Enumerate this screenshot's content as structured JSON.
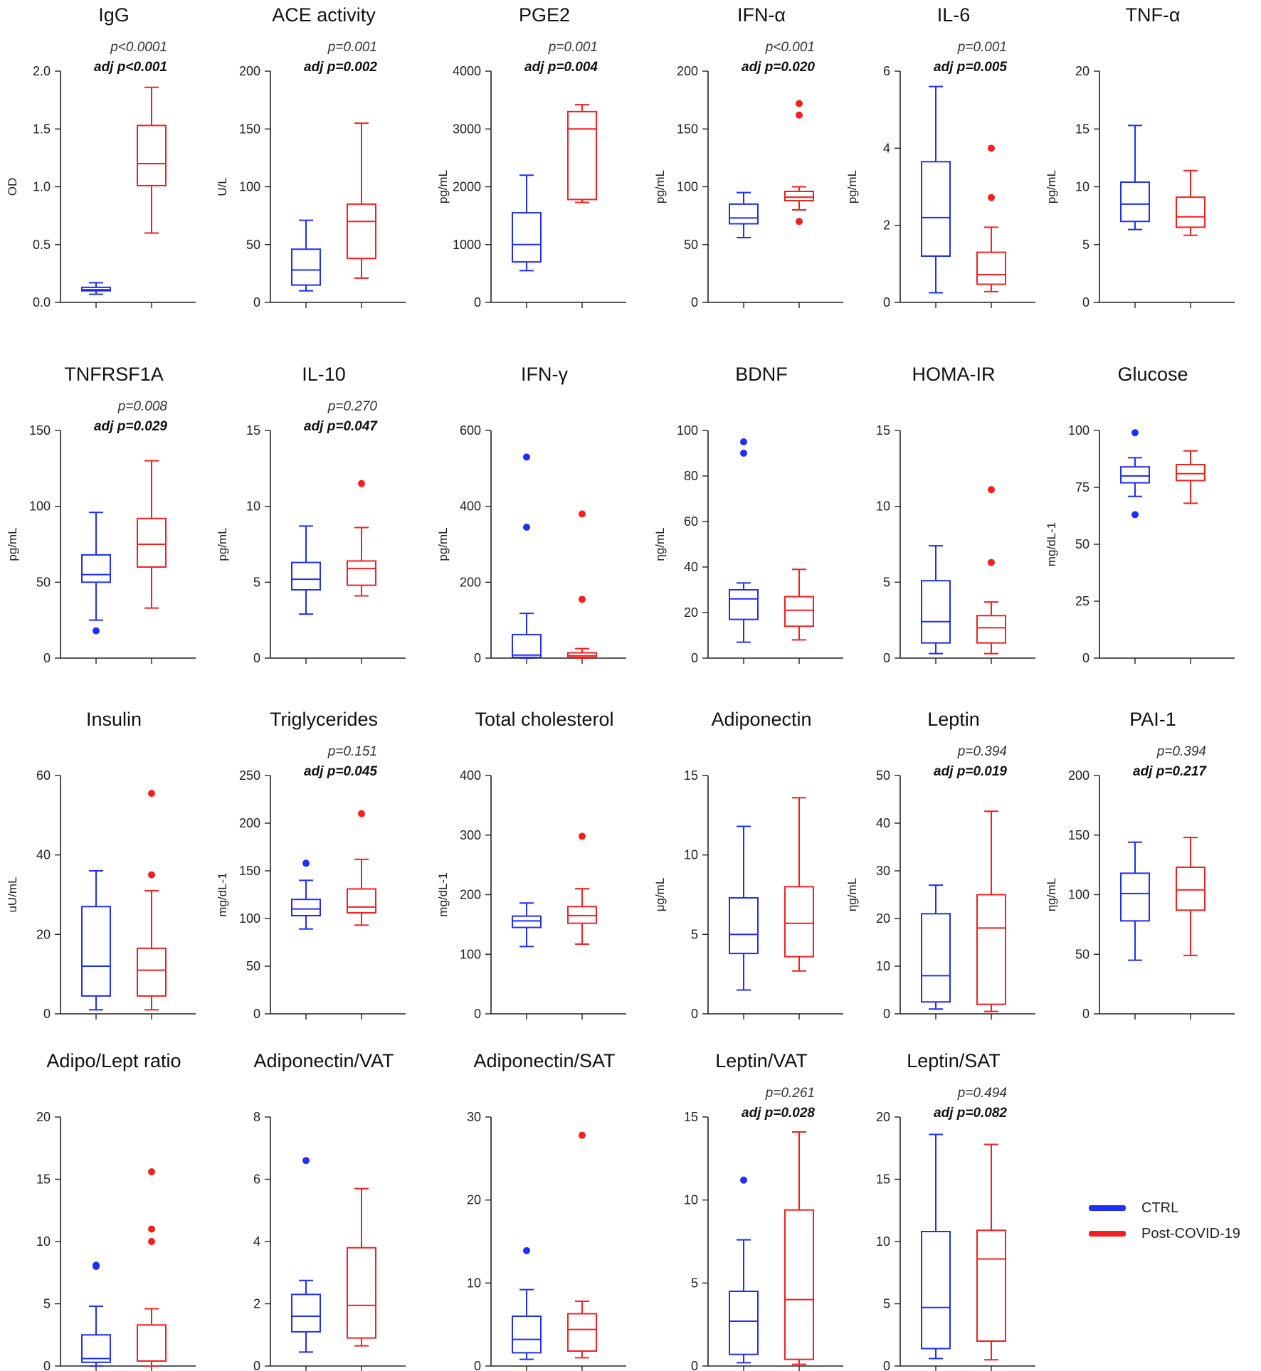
{
  "figure": {
    "legend": [
      {
        "label": "CTRL",
        "color": "#1f2ff5"
      },
      {
        "label": "Post-COVID-19",
        "color": "#f51f1f"
      }
    ]
  },
  "chart_data": [
    {
      "type": "box",
      "title": "IgG",
      "ylabel": "OD",
      "ylim": [
        0,
        2.0
      ],
      "ticks": [
        0.0,
        0.5,
        1.0,
        1.5,
        2.0
      ],
      "tick_labels": [
        "0.0",
        "0.5",
        "1.0",
        "1.5",
        "2.0"
      ],
      "p": "p<0.0001",
      "adj": "adj p<0.001",
      "groups": [
        {
          "name": "CTRL",
          "min": 0.07,
          "q1": 0.1,
          "median": 0.11,
          "q3": 0.13,
          "max": 0.17,
          "outliers": []
        },
        {
          "name": "Post-COVID-19",
          "min": 0.6,
          "q1": 1.01,
          "median": 1.2,
          "q3": 1.53,
          "max": 1.86,
          "outliers": []
        }
      ]
    },
    {
      "type": "box",
      "title": "ACE activity",
      "ylabel": "U/L",
      "ylim": [
        0,
        200
      ],
      "ticks": [
        0,
        50,
        100,
        150,
        200
      ],
      "tick_labels": [
        "0",
        "50",
        "100",
        "150",
        "200"
      ],
      "p": "p=0.001",
      "adj": "adj p=0.002",
      "groups": [
        {
          "name": "CTRL",
          "min": 10,
          "q1": 15,
          "median": 28,
          "q3": 46,
          "max": 71,
          "outliers": []
        },
        {
          "name": "Post-COVID-19",
          "min": 21,
          "q1": 38,
          "median": 70,
          "q3": 85,
          "max": 155,
          "outliers": []
        }
      ]
    },
    {
      "type": "box",
      "title": "PGE2",
      "ylabel": "pg/mL",
      "ylim": [
        0,
        4000
      ],
      "ticks": [
        0,
        1000,
        2000,
        3000,
        4000
      ],
      "tick_labels": [
        "0",
        "1000",
        "2000",
        "3000",
        "4000"
      ],
      "p": "p=0.001",
      "adj": "adj p=0.004",
      "groups": [
        {
          "name": "CTRL",
          "min": 550,
          "q1": 700,
          "median": 1000,
          "q3": 1550,
          "max": 2200,
          "outliers": []
        },
        {
          "name": "Post-COVID-19",
          "min": 1730,
          "q1": 1780,
          "median": 3000,
          "q3": 3300,
          "max": 3420,
          "outliers": []
        }
      ]
    },
    {
      "type": "box",
      "title": "IFN-α",
      "ylabel": "pg/mL",
      "ylim": [
        0,
        200
      ],
      "ticks": [
        0,
        50,
        100,
        150,
        200
      ],
      "tick_labels": [
        "0",
        "50",
        "100",
        "150",
        "200"
      ],
      "p": "p<0.001",
      "adj": "adj p=0.020",
      "groups": [
        {
          "name": "CTRL",
          "min": 56,
          "q1": 68,
          "median": 73,
          "q3": 85,
          "max": 95,
          "outliers": []
        },
        {
          "name": "Post-COVID-19",
          "min": 80,
          "q1": 88,
          "median": 91,
          "q3": 96,
          "max": 100,
          "outliers": [
            162,
            172,
            70
          ]
        }
      ]
    },
    {
      "type": "box",
      "title": "IL-6",
      "ylabel": "pg/mL",
      "ylim": [
        0,
        6
      ],
      "ticks": [
        0,
        2,
        4,
        6
      ],
      "tick_labels": [
        "0",
        "2",
        "4",
        "6"
      ],
      "p": "p=0.001",
      "adj": "adj p=0.005",
      "groups": [
        {
          "name": "CTRL",
          "min": 0.25,
          "q1": 1.2,
          "median": 2.2,
          "q3": 3.65,
          "max": 5.6,
          "outliers": []
        },
        {
          "name": "Post-COVID-19",
          "min": 0.28,
          "q1": 0.47,
          "median": 0.72,
          "q3": 1.3,
          "max": 1.95,
          "outliers": [
            2.72,
            4.0
          ]
        }
      ]
    },
    {
      "type": "box",
      "title": "TNF-α",
      "ylabel": "pg/mL",
      "ylim": [
        0,
        20
      ],
      "ticks": [
        0,
        5,
        10,
        15,
        20
      ],
      "tick_labels": [
        "0",
        "5",
        "10",
        "15",
        "20"
      ],
      "p": "",
      "adj": "",
      "groups": [
        {
          "name": "CTRL",
          "min": 6.3,
          "q1": 7.0,
          "median": 8.5,
          "q3": 10.4,
          "max": 15.3,
          "outliers": []
        },
        {
          "name": "Post-COVID-19",
          "min": 5.8,
          "q1": 6.5,
          "median": 7.4,
          "q3": 9.1,
          "max": 11.4,
          "outliers": []
        }
      ]
    },
    {
      "type": "box",
      "title": "TNFRSF1A",
      "ylabel": "pg/mL",
      "ylim": [
        0,
        150
      ],
      "ticks": [
        0,
        50,
        100,
        150
      ],
      "tick_labels": [
        "0",
        "50",
        "100",
        "150"
      ],
      "p": "p=0.008",
      "adj": "adj p=0.029",
      "groups": [
        {
          "name": "CTRL",
          "min": 25,
          "q1": 50,
          "median": 55,
          "q3": 68,
          "max": 96,
          "outliers": [
            18
          ]
        },
        {
          "name": "Post-COVID-19",
          "min": 33,
          "q1": 60,
          "median": 75,
          "q3": 92,
          "max": 130,
          "outliers": []
        }
      ]
    },
    {
      "type": "box",
      "title": "IL-10",
      "ylabel": "pg/mL",
      "ylim": [
        0,
        15
      ],
      "ticks": [
        0,
        5,
        10,
        15
      ],
      "tick_labels": [
        "0",
        "5",
        "10",
        "15"
      ],
      "p": "p=0.270",
      "adj": "adj p=0.047",
      "groups": [
        {
          "name": "CTRL",
          "min": 2.9,
          "q1": 4.5,
          "median": 5.2,
          "q3": 6.3,
          "max": 8.7,
          "outliers": []
        },
        {
          "name": "Post-COVID-19",
          "min": 4.1,
          "q1": 4.8,
          "median": 5.9,
          "q3": 6.4,
          "max": 8.6,
          "outliers": [
            11.5
          ]
        }
      ]
    },
    {
      "type": "box",
      "title": "IFN-γ",
      "ylabel": "pg/mL",
      "ylim": [
        0,
        600
      ],
      "ticks": [
        0,
        200,
        400,
        600
      ],
      "tick_labels": [
        "0",
        "200",
        "400",
        "600"
      ],
      "p": "",
      "adj": "",
      "groups": [
        {
          "name": "CTRL",
          "min": 0,
          "q1": 2,
          "median": 8,
          "q3": 62,
          "max": 118,
          "outliers": [
            345,
            530
          ]
        },
        {
          "name": "Post-COVID-19",
          "min": 0,
          "q1": 2,
          "median": 6,
          "q3": 14,
          "max": 25,
          "outliers": [
            155,
            380
          ]
        }
      ]
    },
    {
      "type": "box",
      "title": "BDNF",
      "ylabel": "ηg/mL",
      "ylim": [
        0,
        100
      ],
      "ticks": [
        0,
        20,
        40,
        60,
        80,
        100
      ],
      "tick_labels": [
        "0",
        "20",
        "40",
        "60",
        "80",
        "100"
      ],
      "p": "",
      "adj": "",
      "groups": [
        {
          "name": "CTRL",
          "min": 7,
          "q1": 17,
          "median": 26,
          "q3": 30,
          "max": 33,
          "outliers": [
            90,
            95
          ]
        },
        {
          "name": "Post-COVID-19",
          "min": 8,
          "q1": 14,
          "median": 21,
          "q3": 27,
          "max": 39,
          "outliers": []
        }
      ]
    },
    {
      "type": "box",
      "title": "HOMA-IR",
      "ylabel": "",
      "ylim": [
        0,
        15
      ],
      "ticks": [
        0,
        5,
        10,
        15
      ],
      "tick_labels": [
        "0",
        "5",
        "10",
        "15"
      ],
      "p": "",
      "adj": "",
      "groups": [
        {
          "name": "CTRL",
          "min": 0.3,
          "q1": 1.0,
          "median": 2.4,
          "q3": 5.1,
          "max": 7.4,
          "outliers": []
        },
        {
          "name": "Post-COVID-19",
          "min": 0.3,
          "q1": 1.0,
          "median": 2.0,
          "q3": 2.8,
          "max": 3.7,
          "outliers": [
            6.3,
            11.1
          ]
        }
      ]
    },
    {
      "type": "box",
      "title": "Glucose",
      "ylabel": "mg/dL-1",
      "ylim": [
        0,
        100
      ],
      "ticks": [
        0,
        25,
        50,
        75,
        100
      ],
      "tick_labels": [
        "0",
        "25",
        "50",
        "75",
        "100"
      ],
      "p": "",
      "adj": "",
      "groups": [
        {
          "name": "CTRL",
          "min": 71,
          "q1": 77,
          "median": 80,
          "q3": 84,
          "max": 88,
          "outliers": [
            63,
            99
          ]
        },
        {
          "name": "Post-COVID-19",
          "min": 68,
          "q1": 78,
          "median": 81,
          "q3": 85,
          "max": 91,
          "outliers": []
        }
      ]
    },
    {
      "type": "box",
      "title": "Insulin",
      "ylabel": "uU/mL",
      "ylim": [
        0,
        60
      ],
      "ticks": [
        0,
        20,
        40,
        60
      ],
      "tick_labels": [
        "0",
        "20",
        "40",
        "60"
      ],
      "p": "",
      "adj": "",
      "groups": [
        {
          "name": "CTRL",
          "min": 1,
          "q1": 4.5,
          "median": 12,
          "q3": 27,
          "max": 36,
          "outliers": []
        },
        {
          "name": "Post-COVID-19",
          "min": 1,
          "q1": 4.5,
          "median": 11,
          "q3": 16.5,
          "max": 31,
          "outliers": [
            35,
            55.5
          ]
        }
      ]
    },
    {
      "type": "box",
      "title": "Triglycerides",
      "ylabel": "mg/dL-1",
      "ylim": [
        0,
        250
      ],
      "ticks": [
        0,
        50,
        100,
        150,
        200,
        250
      ],
      "tick_labels": [
        "0",
        "50",
        "100",
        "150",
        "200",
        "250"
      ],
      "p": "p=0.151",
      "adj": "adj p=0.045",
      "groups": [
        {
          "name": "CTRL",
          "min": 89,
          "q1": 103,
          "median": 110,
          "q3": 120,
          "max": 140,
          "outliers": [
            158
          ]
        },
        {
          "name": "Post-COVID-19",
          "min": 93,
          "q1": 106,
          "median": 112,
          "q3": 131,
          "max": 162,
          "outliers": [
            210
          ]
        }
      ]
    },
    {
      "type": "box",
      "title": "Total cholesterol",
      "ylabel": "mg/dL-1",
      "ylim": [
        0,
        400
      ],
      "ticks": [
        0,
        100,
        200,
        300,
        400
      ],
      "tick_labels": [
        "0",
        "100",
        "200",
        "300",
        "400"
      ],
      "p": "",
      "adj": "",
      "groups": [
        {
          "name": "CTRL",
          "min": 113,
          "q1": 145,
          "median": 156,
          "q3": 164,
          "max": 186,
          "outliers": []
        },
        {
          "name": "Post-COVID-19",
          "min": 117,
          "q1": 152,
          "median": 165,
          "q3": 180,
          "max": 210,
          "outliers": [
            298
          ]
        }
      ]
    },
    {
      "type": "box",
      "title": "Adiponectin",
      "ylabel": "μg/mL",
      "ylim": [
        0,
        15
      ],
      "ticks": [
        0,
        5,
        10,
        15
      ],
      "tick_labels": [
        "0",
        "5",
        "10",
        "15"
      ],
      "p": "",
      "adj": "",
      "groups": [
        {
          "name": "CTRL",
          "min": 1.5,
          "q1": 3.8,
          "median": 5.0,
          "q3": 7.3,
          "max": 11.8,
          "outliers": []
        },
        {
          "name": "Post-COVID-19",
          "min": 2.7,
          "q1": 3.6,
          "median": 5.7,
          "q3": 8.0,
          "max": 13.6,
          "outliers": []
        }
      ]
    },
    {
      "type": "box",
      "title": "Leptin",
      "ylabel": "ηg/mL",
      "ylim": [
        0,
        50
      ],
      "ticks": [
        0,
        10,
        20,
        30,
        40,
        50
      ],
      "tick_labels": [
        "0",
        "10",
        "20",
        "30",
        "40",
        "50"
      ],
      "p": "p=0.394",
      "adj": "adj p=0.019",
      "groups": [
        {
          "name": "CTRL",
          "min": 1,
          "q1": 2.5,
          "median": 8,
          "q3": 21,
          "max": 27,
          "outliers": []
        },
        {
          "name": "Post-COVID-19",
          "min": 0.5,
          "q1": 2,
          "median": 18,
          "q3": 25,
          "max": 42.5,
          "outliers": []
        }
      ]
    },
    {
      "type": "box",
      "title": "PAI-1",
      "ylabel": "ηg/mL",
      "ylim": [
        0,
        200
      ],
      "ticks": [
        0,
        50,
        100,
        150,
        200
      ],
      "tick_labels": [
        "0",
        "50",
        "100",
        "150",
        "200"
      ],
      "p": "p=0.394",
      "adj": "adj p=0.217",
      "groups": [
        {
          "name": "CTRL",
          "min": 45,
          "q1": 78,
          "median": 101,
          "q3": 118,
          "max": 144,
          "outliers": []
        },
        {
          "name": "Post-COVID-19",
          "min": 49,
          "q1": 87,
          "median": 104,
          "q3": 123,
          "max": 148,
          "outliers": []
        }
      ]
    },
    {
      "type": "box",
      "title": "Adipo/Lept ratio",
      "ylabel": "",
      "ylim": [
        0,
        20
      ],
      "ticks": [
        0,
        5,
        10,
        15,
        20
      ],
      "tick_labels": [
        "0",
        "5",
        "10",
        "15",
        "20"
      ],
      "p": "",
      "adj": "",
      "groups": [
        {
          "name": "CTRL",
          "min": 0,
          "q1": 0.3,
          "median": 0.6,
          "q3": 2.5,
          "max": 4.8,
          "outliers": [
            8,
            8.1
          ]
        },
        {
          "name": "Post-COVID-19",
          "min": 0,
          "q1": 0.4,
          "median": 0.4,
          "q3": 3.3,
          "max": 4.6,
          "outliers": [
            10,
            11,
            15.6
          ]
        }
      ]
    },
    {
      "type": "box",
      "title": "Adiponectin/VAT",
      "ylabel": "",
      "ylim": [
        0,
        8
      ],
      "ticks": [
        0,
        2,
        4,
        6,
        8
      ],
      "tick_labels": [
        "0",
        "2",
        "4",
        "6",
        "8"
      ],
      "p": "",
      "adj": "",
      "groups": [
        {
          "name": "CTRL",
          "min": 0.45,
          "q1": 1.1,
          "median": 1.6,
          "q3": 2.3,
          "max": 2.75,
          "outliers": [
            6.6
          ]
        },
        {
          "name": "Post-COVID-19",
          "min": 0.65,
          "q1": 0.9,
          "median": 1.95,
          "q3": 3.8,
          "max": 5.7,
          "outliers": []
        }
      ]
    },
    {
      "type": "box",
      "title": "Adiponectin/SAT",
      "ylabel": "",
      "ylim": [
        0,
        30
      ],
      "ticks": [
        0,
        10,
        20,
        30
      ],
      "tick_labels": [
        "0",
        "10",
        "20",
        "30"
      ],
      "p": "",
      "adj": "",
      "groups": [
        {
          "name": "CTRL",
          "min": 0.8,
          "q1": 1.6,
          "median": 3.2,
          "q3": 6.0,
          "max": 9.2,
          "outliers": [
            13.9
          ]
        },
        {
          "name": "Post-COVID-19",
          "min": 1.0,
          "q1": 1.8,
          "median": 4.4,
          "q3": 6.3,
          "max": 7.8,
          "outliers": [
            27.8
          ]
        }
      ]
    },
    {
      "type": "box",
      "title": "Leptin/VAT",
      "ylabel": "",
      "ylim": [
        0,
        15
      ],
      "ticks": [
        0,
        5,
        10,
        15
      ],
      "tick_labels": [
        "0",
        "5",
        "10",
        "15"
      ],
      "p": "p=0.261",
      "adj": "adj p=0.028",
      "groups": [
        {
          "name": "CTRL",
          "min": 0.2,
          "q1": 0.7,
          "median": 2.7,
          "q3": 4.5,
          "max": 7.6,
          "outliers": [
            11.2
          ]
        },
        {
          "name": "Post-COVID-19",
          "min": 0.1,
          "q1": 0.4,
          "median": 4.0,
          "q3": 9.4,
          "max": 14.1,
          "outliers": []
        }
      ]
    },
    {
      "type": "box",
      "title": "Leptin/SAT",
      "ylabel": "",
      "ylim": [
        0,
        20
      ],
      "ticks": [
        0,
        5,
        10,
        15,
        20
      ],
      "tick_labels": [
        "0",
        "5",
        "10",
        "15",
        "20"
      ],
      "p": "p=0.494",
      "adj": "adj p=0.082",
      "groups": [
        {
          "name": "CTRL",
          "min": 0.6,
          "q1": 1.4,
          "median": 4.7,
          "q3": 10.8,
          "max": 18.6,
          "outliers": []
        },
        {
          "name": "Post-COVID-19",
          "min": 0.5,
          "q1": 2.0,
          "median": 8.6,
          "q3": 10.9,
          "max": 17.8,
          "outliers": []
        }
      ]
    }
  ]
}
